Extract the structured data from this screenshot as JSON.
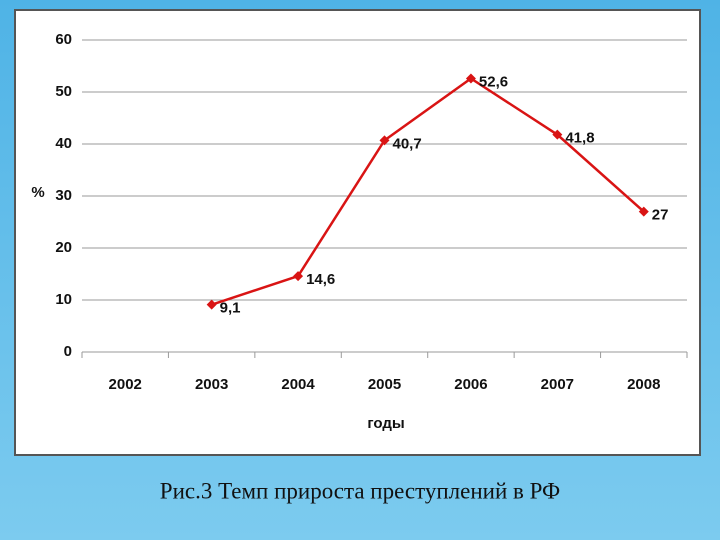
{
  "chart_data": {
    "type": "line",
    "title": "Рис.3 Темп прироста преступлений в РФ",
    "x_label": "годы",
    "y_label": "%",
    "categories": [
      "2002",
      "2003",
      "2004",
      "2005",
      "2006",
      "2007",
      "2008"
    ],
    "values": [
      null,
      9.1,
      14.6,
      40.7,
      52.6,
      41.8,
      27
    ],
    "value_labels": [
      null,
      "9,1",
      "14,6",
      "40,7",
      "52,6",
      "41,8",
      "27"
    ],
    "color": "#d91414",
    "ylim": [
      0,
      60
    ],
    "yticks": [
      0,
      10,
      20,
      30,
      40,
      50,
      60
    ],
    "grid": true
  }
}
